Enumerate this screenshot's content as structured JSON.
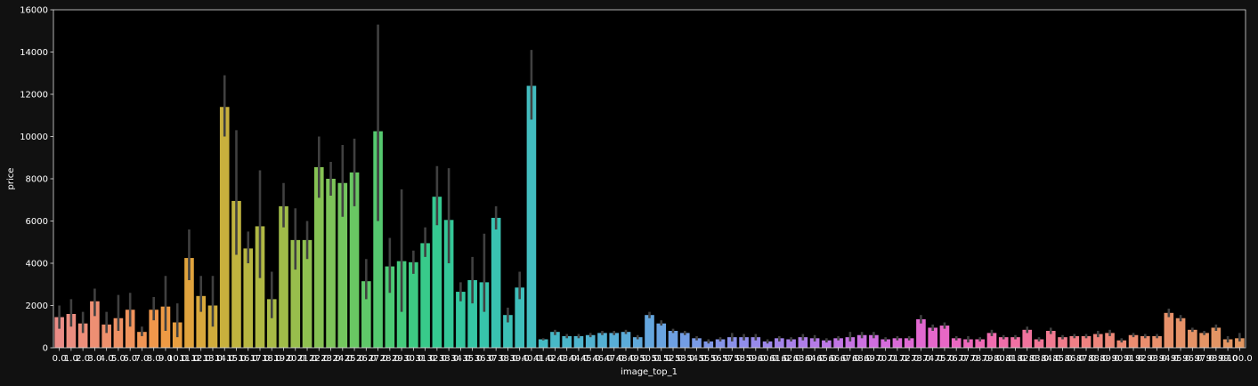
{
  "chart_data": {
    "type": "bar",
    "title": "",
    "xlabel": "image_top_1",
    "ylabel": "price",
    "ylim": [
      0,
      16000
    ],
    "yticks": [
      0,
      2000,
      4000,
      6000,
      8000,
      10000,
      12000,
      14000,
      16000
    ],
    "grid": false,
    "legend": "none",
    "colors": {
      "figure_bg": "#111111",
      "axes_bg": "#000000",
      "text": "#ffffff",
      "errbar": "#404040",
      "frame": "#dddddd"
    },
    "categories": [
      "0.0",
      "1.0",
      "2.0",
      "3.0",
      "4.0",
      "5.0",
      "6.0",
      "7.0",
      "8.0",
      "9.0",
      "10.0",
      "11.0",
      "12.0",
      "13.0",
      "14.0",
      "15.0",
      "16.0",
      "17.0",
      "18.0",
      "19.0",
      "20.0",
      "21.0",
      "22.0",
      "23.0",
      "24.0",
      "25.0",
      "26.0",
      "27.0",
      "28.0",
      "29.0",
      "30.0",
      "31.0",
      "32.0",
      "33.0",
      "34.0",
      "35.0",
      "36.0",
      "37.0",
      "38.0",
      "39.0",
      "40.0",
      "41.0",
      "42.0",
      "43.0",
      "44.0",
      "45.0",
      "46.0",
      "47.0",
      "48.0",
      "49.0",
      "50.0",
      "51.0",
      "52.0",
      "53.0",
      "54.0",
      "55.0",
      "56.0",
      "57.0",
      "58.0",
      "59.0",
      "60.0",
      "61.0",
      "62.0",
      "63.0",
      "64.0",
      "65.0",
      "66.0",
      "67.0",
      "68.0",
      "69.0",
      "70.0",
      "71.0",
      "72.0",
      "73.0",
      "74.0",
      "75.0",
      "76.0",
      "77.0",
      "78.0",
      "79.0",
      "80.0",
      "81.0",
      "82.0",
      "83.0",
      "84.0",
      "85.0",
      "86.0",
      "87.0",
      "88.0",
      "89.0",
      "90.0",
      "91.0",
      "92.0",
      "93.0",
      "94.0",
      "95.0",
      "96.0",
      "97.0",
      "98.0",
      "99.0",
      "100.0"
    ],
    "values": [
      1450,
      1600,
      1150,
      2200,
      1100,
      1400,
      1800,
      750,
      1800,
      1950,
      1200,
      4250,
      2450,
      2000,
      11400,
      6950,
      4700,
      5750,
      2300,
      6700,
      5100,
      5100,
      8550,
      8000,
      7800,
      8300,
      3150,
      10250,
      3850,
      4100,
      4050,
      4950,
      7150,
      6050,
      2650,
      3200,
      3100,
      6150,
      1550,
      2850,
      12400,
      400,
      750,
      550,
      550,
      600,
      700,
      700,
      750,
      500,
      1550,
      1150,
      800,
      700,
      450,
      300,
      400,
      500,
      500,
      500,
      300,
      450,
      400,
      500,
      450,
      350,
      450,
      500,
      600,
      600,
      400,
      450,
      450,
      1350,
      950,
      1050,
      450,
      400,
      400,
      700,
      500,
      500,
      850,
      400,
      800,
      500,
      550,
      550,
      650,
      700,
      350,
      600,
      550,
      550,
      1650,
      1400,
      850,
      700,
      950,
      400,
      450
    ],
    "errors_low": [
      900,
      1000,
      700,
      1500,
      700,
      800,
      1000,
      550,
      1300,
      800,
      500,
      3200,
      1700,
      1000,
      10000,
      4400,
      4000,
      3300,
      1400,
      5700,
      3700,
      4200,
      7100,
      7200,
      6200,
      6700,
      2300,
      6000,
      2600,
      1700,
      3500,
      4300,
      5800,
      4000,
      2200,
      2100,
      1700,
      5600,
      1200,
      2300,
      10800,
      350,
      600,
      450,
      450,
      500,
      600,
      600,
      650,
      400,
      1400,
      1050,
      700,
      600,
      350,
      200,
      300,
      300,
      350,
      350,
      200,
      300,
      300,
      350,
      300,
      250,
      350,
      300,
      450,
      450,
      300,
      350,
      350,
      1150,
      800,
      900,
      350,
      250,
      300,
      550,
      400,
      400,
      700,
      300,
      650,
      400,
      450,
      450,
      500,
      550,
      250,
      500,
      450,
      450,
      1450,
      1250,
      750,
      600,
      800,
      250,
      300
    ],
    "errors_high": [
      2000,
      2300,
      1700,
      2800,
      1700,
      2500,
      2600,
      1000,
      2400,
      3400,
      2100,
      5600,
      3400,
      3400,
      12900,
      10300,
      5500,
      8400,
      3600,
      7800,
      6600,
      6000,
      10000,
      8800,
      9600,
      9900,
      4200,
      15300,
      5200,
      7500,
      4600,
      5700,
      8600,
      8500,
      3100,
      4300,
      5400,
      6700,
      1900,
      3600,
      14100,
      450,
      850,
      650,
      650,
      700,
      800,
      800,
      850,
      600,
      1700,
      1300,
      900,
      800,
      550,
      400,
      500,
      700,
      650,
      650,
      400,
      550,
      500,
      650,
      600,
      450,
      550,
      750,
      750,
      750,
      500,
      550,
      550,
      1550,
      1100,
      1200,
      550,
      550,
      500,
      850,
      600,
      600,
      1000,
      500,
      950,
      600,
      650,
      650,
      800,
      850,
      450,
      700,
      650,
      650,
      1850,
      1550,
      950,
      800,
      1100,
      550,
      700
    ],
    "bar_colors": [
      "#ea8c86",
      "#eb8d80",
      "#ec8e7a",
      "#ed8f73",
      "#ee906c",
      "#ef9164",
      "#f0935c",
      "#f09554",
      "#f0974b",
      "#ee9a44",
      "#e89e40",
      "#e0a33d",
      "#d8a83c",
      "#d0ac3c",
      "#c8b03d",
      "#c0b33f",
      "#b8b641",
      "#b0b843",
      "#a8ba46",
      "#a0bc49",
      "#98be4c",
      "#8fc050",
      "#86c254",
      "#7dc459",
      "#73c65e",
      "#69c763",
      "#5fc869",
      "#55c96f",
      "#4cca75",
      "#44ca7c",
      "#3dca83",
      "#38ca8a",
      "#35c991",
      "#34c898",
      "#34c79f",
      "#35c6a5",
      "#37c4ab",
      "#39c2b1",
      "#3cc0b6",
      "#3fbebb",
      "#42bcbf",
      "#45bac3",
      "#48b8c7",
      "#4bb6ca",
      "#4eb4cd",
      "#51b2d0",
      "#54b0d3",
      "#58aed6",
      "#5cabd9",
      "#60a9db",
      "#64a6de",
      "#69a3e0",
      "#6ea0e2",
      "#739de4",
      "#799ae6",
      "#7f97e7",
      "#8594e8",
      "#8b91e9",
      "#918eea",
      "#978aea",
      "#9d87ea",
      "#a384ea",
      "#a981e9",
      "#af7ee8",
      "#b57be7",
      "#bb78e6",
      "#c175e4",
      "#c672e2",
      "#cb70e0",
      "#d06ede",
      "#d56cdb",
      "#da6ad8",
      "#de69d4",
      "#e268d0",
      "#e567cb",
      "#e867c6",
      "#ea68c1",
      "#ec69bb",
      "#ee6ab5",
      "#ef6caf",
      "#f06ea9",
      "#f070a3",
      "#f0739d",
      "#f07697",
      "#f07991",
      "#ef7c8b",
      "#ef7f86",
      "#ee8281",
      "#ed857c",
      "#ec8878",
      "#eb8a74",
      "#ea8c70",
      "#e98e6e",
      "#e8906c",
      "#e7916a",
      "#e69268",
      "#e59366",
      "#e49465",
      "#e39564",
      "#e29663",
      "#e19762"
    ]
  }
}
